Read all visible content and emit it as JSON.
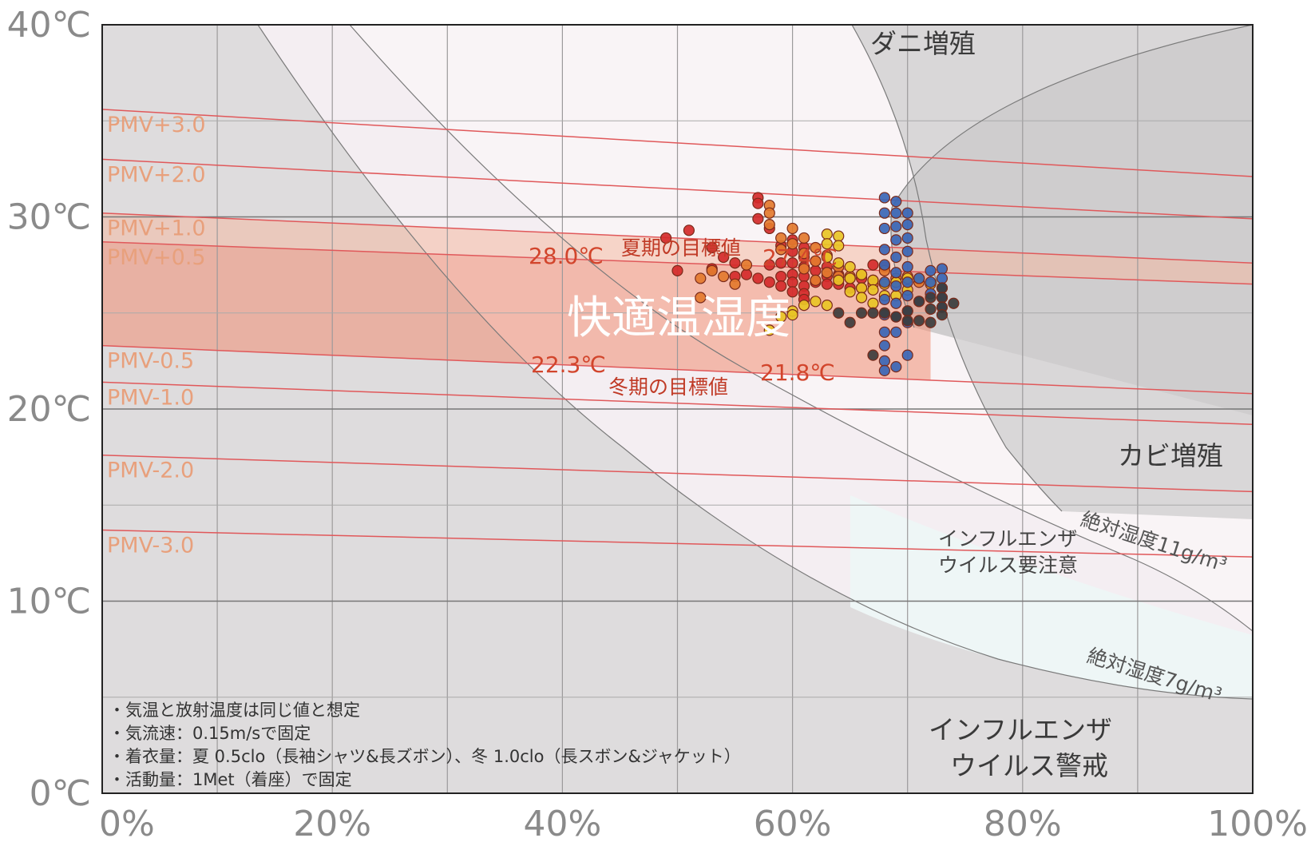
{
  "chart_data": {
    "type": "scatter",
    "title": "",
    "xlabel": "",
    "ylabel": "",
    "xlim": [
      0,
      100
    ],
    "ylim": [
      0,
      40
    ],
    "x_ticks": [
      "0%",
      "20%",
      "40%",
      "60%",
      "80%",
      "100%"
    ],
    "y_ticks": [
      "0℃",
      "10℃",
      "20℃",
      "30℃",
      "40℃"
    ],
    "grid": true,
    "pmv_lines": [
      {
        "label": "PMV+3.0",
        "y_start": 35.6,
        "y_end": 32.1
      },
      {
        "label": "PMV+2.0",
        "y_start": 33.0,
        "y_end": 29.9
      },
      {
        "label": "PMV+1.0",
        "y_start": 30.2,
        "y_end": 27.6
      },
      {
        "label": "PMV+0.5",
        "y_start": 28.7,
        "y_end": 26.5
      },
      {
        "label": "PMV-0.5",
        "y_start": 23.3,
        "y_end": 20.8
      },
      {
        "label": "PMV-1.0",
        "y_start": 21.4,
        "y_end": 19.2
      },
      {
        "label": "PMV-2.0",
        "y_start": 17.6,
        "y_end": 15.7
      },
      {
        "label": "PMV-3.0",
        "y_start": 13.7,
        "y_end": 12.3
      }
    ],
    "zones": {
      "mite": "ダニ増殖",
      "mold": "カビ増殖",
      "flu_caution": [
        "インフルエンザ",
        "ウイルス要注意"
      ],
      "flu_warning": [
        "インフルエンザ",
        "ウイルス警戒"
      ],
      "abs_11": "絶対湿度11g/m³",
      "abs_7": "絶対湿度7g/m³"
    },
    "comfort_label": "快適温湿度",
    "summer_target": {
      "label": "夏期の目標値",
      "values": [
        "28.0℃",
        "27.4℃"
      ]
    },
    "winter_target": {
      "label": "冬期の目標値",
      "values": [
        "22.3℃",
        "21.8℃"
      ]
    },
    "notes": [
      "・気温と放射温度は同じ値と想定",
      "・気流速：0.15m/sで固定",
      "・着衣量：夏 0.5clo（長袖シャツ&長ズボン）、冬 1.0clo（長スボン&ジャケット）",
      "・活動量：1Met（着座）で固定"
    ],
    "series": [
      {
        "color": "#d42a2a",
        "points": [
          [
            49,
            28.9
          ],
          [
            50,
            27.2
          ],
          [
            51,
            29.3
          ],
          [
            53,
            28.4
          ],
          [
            53,
            27.3
          ],
          [
            54,
            27.9
          ],
          [
            55,
            27.6
          ],
          [
            55,
            26.9
          ],
          [
            56,
            27.0
          ],
          [
            57,
            31.0
          ],
          [
            57,
            30.7
          ],
          [
            57,
            29.9
          ],
          [
            57,
            26.8
          ],
          [
            58,
            29.4
          ],
          [
            58,
            27.5
          ],
          [
            58,
            26.6
          ],
          [
            59,
            28.5
          ],
          [
            59,
            27.6
          ],
          [
            59,
            26.9
          ],
          [
            59,
            26.4
          ],
          [
            60,
            28.8
          ],
          [
            60,
            28.2
          ],
          [
            60,
            27.6
          ],
          [
            60,
            27.0
          ],
          [
            60,
            26.6
          ],
          [
            60,
            26.1
          ],
          [
            61,
            28.4
          ],
          [
            61,
            27.9
          ],
          [
            61,
            27.4
          ],
          [
            61,
            26.9
          ],
          [
            61,
            26.4
          ],
          [
            61,
            26.0
          ],
          [
            61,
            25.7
          ],
          [
            62,
            27.7
          ],
          [
            62,
            27.2
          ],
          [
            62,
            26.6
          ],
          [
            63,
            27.4
          ],
          [
            63,
            26.9
          ],
          [
            63,
            26.5
          ],
          [
            64,
            27.0
          ],
          [
            64,
            26.5
          ],
          [
            65,
            26.8
          ],
          [
            65,
            26.3
          ],
          [
            66,
            26.8
          ],
          [
            66,
            26.3
          ],
          [
            67,
            27.5
          ],
          [
            67,
            26.7
          ],
          [
            68,
            27.4
          ]
        ]
      },
      {
        "color": "#e37a2e",
        "points": [
          [
            52,
            26.8
          ],
          [
            52,
            25.8
          ],
          [
            53,
            27.2
          ],
          [
            54,
            26.9
          ],
          [
            55,
            26.5
          ],
          [
            56,
            27.5
          ],
          [
            58,
            30.6
          ],
          [
            58,
            30.2
          ],
          [
            58,
            29.6
          ],
          [
            59,
            28.9
          ],
          [
            59,
            28.3
          ],
          [
            60,
            29.4
          ],
          [
            60,
            28.6
          ],
          [
            61,
            28.9
          ],
          [
            61,
            28.1
          ],
          [
            61,
            27.3
          ],
          [
            62,
            28.4
          ],
          [
            62,
            27.7
          ],
          [
            62,
            26.7
          ],
          [
            63,
            28.0
          ],
          [
            63,
            27.1
          ],
          [
            64,
            27.4
          ],
          [
            64,
            26.9
          ],
          [
            65,
            26.9
          ],
          [
            66,
            27.0
          ],
          [
            67,
            26.5
          ],
          [
            68,
            27.2
          ],
          [
            69,
            26.8
          ],
          [
            70,
            26.9
          ],
          [
            71,
            26.6
          ]
        ]
      },
      {
        "color": "#e8c425",
        "points": [
          [
            58,
            24.1
          ],
          [
            59,
            24.8
          ],
          [
            60,
            25.1
          ],
          [
            60,
            24.9
          ],
          [
            61,
            25.4
          ],
          [
            62,
            25.6
          ],
          [
            63,
            25.4
          ],
          [
            63,
            29.1
          ],
          [
            63,
            28.6
          ],
          [
            63,
            27.9
          ],
          [
            64,
            29.0
          ],
          [
            64,
            28.5
          ],
          [
            64,
            27.6
          ],
          [
            64,
            26.7
          ],
          [
            65,
            27.4
          ],
          [
            65,
            26.8
          ],
          [
            65,
            26.1
          ],
          [
            66,
            27.0
          ],
          [
            66,
            26.3
          ],
          [
            66,
            25.8
          ],
          [
            67,
            26.7
          ],
          [
            67,
            26.2
          ],
          [
            67,
            25.5
          ],
          [
            68,
            26.5
          ],
          [
            68,
            25.9
          ],
          [
            69,
            26.6
          ],
          [
            69,
            25.9
          ],
          [
            70,
            26.8
          ],
          [
            70,
            26.2
          ],
          [
            71,
            26.8
          ],
          [
            72,
            26.5
          ]
        ]
      },
      {
        "color": "#3a66b5",
        "points": [
          [
            68,
            31.0
          ],
          [
            68,
            30.2
          ],
          [
            68,
            29.4
          ],
          [
            68,
            28.3
          ],
          [
            68,
            27.5
          ],
          [
            68,
            26.6
          ],
          [
            68,
            25.7
          ],
          [
            68,
            24.9
          ],
          [
            68,
            24.0
          ],
          [
            68,
            23.3
          ],
          [
            68,
            22.5
          ],
          [
            68,
            22.0
          ],
          [
            69,
            30.8
          ],
          [
            69,
            30.2
          ],
          [
            69,
            29.5
          ],
          [
            69,
            28.8
          ],
          [
            69,
            27.9
          ],
          [
            69,
            27.1
          ],
          [
            69,
            26.4
          ],
          [
            69,
            25.5
          ],
          [
            69,
            24.8
          ],
          [
            69,
            24.0
          ],
          [
            69,
            22.2
          ],
          [
            70,
            30.2
          ],
          [
            70,
            29.6
          ],
          [
            70,
            28.9
          ],
          [
            70,
            28.2
          ],
          [
            70,
            27.4
          ],
          [
            70,
            26.6
          ],
          [
            70,
            25.9
          ],
          [
            70,
            25.1
          ],
          [
            70,
            24.5
          ],
          [
            70,
            22.8
          ],
          [
            71,
            26.8
          ],
          [
            71,
            25.6
          ],
          [
            72,
            27.2
          ],
          [
            72,
            26.6
          ],
          [
            72,
            26.0
          ],
          [
            73,
            27.3
          ],
          [
            73,
            26.8
          ],
          [
            73,
            26.3
          ],
          [
            73,
            25.8
          ],
          [
            73,
            25.3
          ]
        ]
      },
      {
        "color": "#3c3c3c",
        "points": [
          [
            64,
            25.0
          ],
          [
            65,
            24.5
          ],
          [
            66,
            25.0
          ],
          [
            67,
            25.0
          ],
          [
            67,
            22.8
          ],
          [
            68,
            25.0
          ],
          [
            69,
            24.8
          ],
          [
            70,
            25.1
          ],
          [
            70,
            24.6
          ],
          [
            71,
            25.6
          ],
          [
            71,
            24.6
          ],
          [
            72,
            25.8
          ],
          [
            72,
            25.2
          ],
          [
            72,
            24.5
          ],
          [
            73,
            26.3
          ],
          [
            73,
            25.8
          ],
          [
            73,
            25.3
          ],
          [
            73,
            24.9
          ],
          [
            74,
            25.5
          ]
        ]
      }
    ]
  }
}
